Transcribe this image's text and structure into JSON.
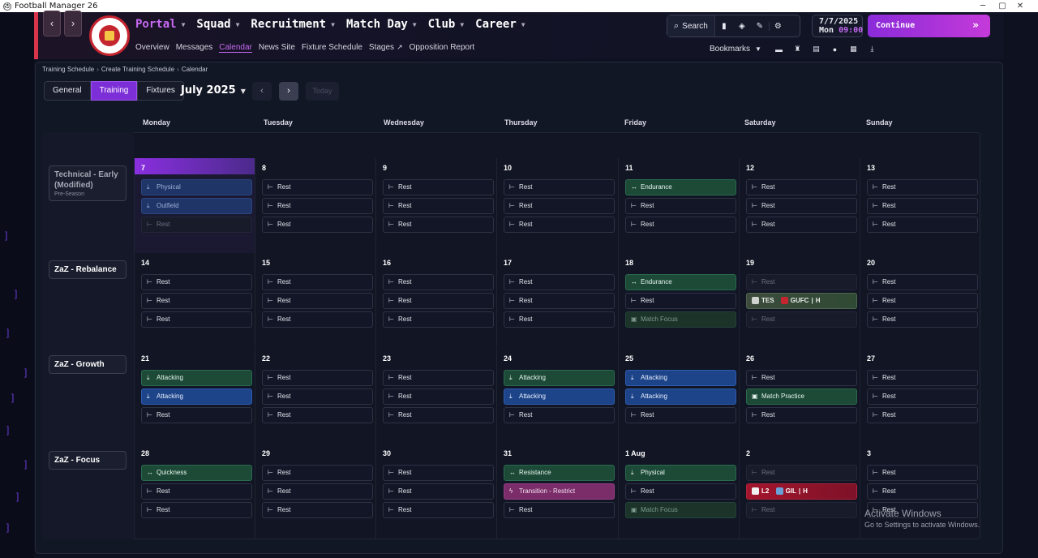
{
  "window": {
    "title": "Football Manager 26",
    "controls": [
      "─",
      "▢",
      "✕"
    ]
  },
  "header": {
    "main_nav": [
      {
        "label": "Portal",
        "active": true
      },
      {
        "label": "Squad",
        "active": false
      },
      {
        "label": "Recruitment",
        "active": false
      },
      {
        "label": "Match Day",
        "active": false
      },
      {
        "label": "Club",
        "active": false
      },
      {
        "label": "Career",
        "active": false
      }
    ],
    "sub_nav": [
      {
        "label": "Overview",
        "active": false
      },
      {
        "label": "Messages",
        "active": false
      },
      {
        "label": "Calendar",
        "active": true
      },
      {
        "label": "News Site",
        "active": false
      },
      {
        "label": "Fixture Schedule",
        "active": false
      },
      {
        "label": "Stages",
        "active": false,
        "external": true
      },
      {
        "label": "Opposition Report",
        "active": false
      }
    ],
    "search_label": "Search",
    "date": "7/7/2025",
    "day": "Mon",
    "time": "09:00",
    "continue_label": "Continue",
    "bookmarks_label": "Bookmarks",
    "accent": "#c86af3"
  },
  "breadcrumb": [
    "Training Schedule",
    "Create Training Schedule",
    "Calendar"
  ],
  "toolbar": {
    "tabs": [
      {
        "label": "General",
        "active": false
      },
      {
        "label": "Training",
        "active": true
      },
      {
        "label": "Fixtures",
        "active": false
      }
    ],
    "month": "July 2025",
    "today_label": "Today"
  },
  "days": [
    "Monday",
    "Tuesday",
    "Wednesday",
    "Thursday",
    "Friday",
    "Saturday",
    "Sunday"
  ],
  "weeks": [
    {
      "plan": {
        "name": "Technical - Early (Modified)",
        "sub": "Pre-Season",
        "dim": true
      },
      "cells": [
        {
          "num": "7",
          "today": true,
          "sessions": [
            {
              "label": "Physical",
              "style": "dimblue",
              "icon": "⤓"
            },
            {
              "label": "Outfield",
              "style": "dimblue",
              "icon": "⤓"
            },
            {
              "label": "Rest",
              "style": "dim",
              "icon": "⊢"
            }
          ]
        },
        {
          "num": "8",
          "sessions": [
            {
              "label": "Rest",
              "style": "rest",
              "icon": "⊢"
            },
            {
              "label": "Rest",
              "style": "rest",
              "icon": "⊢"
            },
            {
              "label": "Rest",
              "style": "rest",
              "icon": "⊢"
            }
          ]
        },
        {
          "num": "9",
          "sessions": [
            {
              "label": "Rest",
              "style": "rest",
              "icon": "⊢"
            },
            {
              "label": "Rest",
              "style": "rest",
              "icon": "⊢"
            },
            {
              "label": "Rest",
              "style": "rest",
              "icon": "⊢"
            }
          ]
        },
        {
          "num": "10",
          "sessions": [
            {
              "label": "Rest",
              "style": "rest",
              "icon": "⊢"
            },
            {
              "label": "Rest",
              "style": "rest",
              "icon": "⊢"
            },
            {
              "label": "Rest",
              "style": "rest",
              "icon": "⊢"
            }
          ]
        },
        {
          "num": "11",
          "sessions": [
            {
              "label": "Endurance",
              "style": "green",
              "icon": "↔"
            },
            {
              "label": "Rest",
              "style": "rest",
              "icon": "⊢"
            },
            {
              "label": "Rest",
              "style": "rest",
              "icon": "⊢"
            }
          ]
        },
        {
          "num": "12",
          "sessions": [
            {
              "label": "Rest",
              "style": "rest",
              "icon": "⊢"
            },
            {
              "label": "Rest",
              "style": "rest",
              "icon": "⊢"
            },
            {
              "label": "Rest",
              "style": "rest",
              "icon": "⊢"
            }
          ]
        },
        {
          "num": "13",
          "sessions": [
            {
              "label": "Rest",
              "style": "rest",
              "icon": "⊢"
            },
            {
              "label": "Rest",
              "style": "rest",
              "icon": "⊢"
            },
            {
              "label": "Rest",
              "style": "rest",
              "icon": "⊢"
            }
          ]
        }
      ]
    },
    {
      "plan": {
        "name": "ZaZ - Rebalance",
        "sub": "",
        "dim": false
      },
      "cells": [
        {
          "num": "14",
          "sessions": [
            {
              "label": "Rest",
              "style": "rest",
              "icon": "⊢"
            },
            {
              "label": "Rest",
              "style": "rest",
              "icon": "⊢"
            },
            {
              "label": "Rest",
              "style": "rest",
              "icon": "⊢"
            }
          ]
        },
        {
          "num": "15",
          "sessions": [
            {
              "label": "Rest",
              "style": "rest",
              "icon": "⊢"
            },
            {
              "label": "Rest",
              "style": "rest",
              "icon": "⊢"
            },
            {
              "label": "Rest",
              "style": "rest",
              "icon": "⊢"
            }
          ]
        },
        {
          "num": "16",
          "sessions": [
            {
              "label": "Rest",
              "style": "rest",
              "icon": "⊢"
            },
            {
              "label": "Rest",
              "style": "rest",
              "icon": "⊢"
            },
            {
              "label": "Rest",
              "style": "rest",
              "icon": "⊢"
            }
          ]
        },
        {
          "num": "17",
          "sessions": [
            {
              "label": "Rest",
              "style": "rest",
              "icon": "⊢"
            },
            {
              "label": "Rest",
              "style": "rest",
              "icon": "⊢"
            },
            {
              "label": "Rest",
              "style": "rest",
              "icon": "⊢"
            }
          ]
        },
        {
          "num": "18",
          "sessions": [
            {
              "label": "Endurance",
              "style": "green",
              "icon": "↔"
            },
            {
              "label": "Rest",
              "style": "rest",
              "icon": "⊢"
            },
            {
              "label": "Match Focus",
              "style": "dimgreen",
              "icon": "▣"
            }
          ]
        },
        {
          "num": "19",
          "sessions": [
            {
              "label": "Rest",
              "style": "dim",
              "icon": "⊢"
            },
            {
              "label": "",
              "style": "match",
              "icon": "",
              "home_team": "TES",
              "away_team": "GUFC",
              "venue": "H",
              "home_color": "#cfd3cf",
              "away_color": "#c4252f"
            },
            {
              "label": "Rest",
              "style": "dim",
              "icon": "⊢"
            }
          ]
        },
        {
          "num": "20",
          "sessions": [
            {
              "label": "Rest",
              "style": "rest",
              "icon": "⊢"
            },
            {
              "label": "Rest",
              "style": "rest",
              "icon": "⊢"
            },
            {
              "label": "Rest",
              "style": "rest",
              "icon": "⊢"
            }
          ]
        }
      ]
    },
    {
      "plan": {
        "name": "ZaZ - Growth",
        "sub": "",
        "dim": false
      },
      "cells": [
        {
          "num": "21",
          "sessions": [
            {
              "label": "Attacking",
              "style": "green",
              "icon": "⤓"
            },
            {
              "label": "Attacking",
              "style": "blue",
              "icon": "⤓"
            },
            {
              "label": "Rest",
              "style": "rest",
              "icon": "⊢"
            }
          ]
        },
        {
          "num": "22",
          "sessions": [
            {
              "label": "Rest",
              "style": "rest",
              "icon": "⊢"
            },
            {
              "label": "Rest",
              "style": "rest",
              "icon": "⊢"
            },
            {
              "label": "Rest",
              "style": "rest",
              "icon": "⊢"
            }
          ]
        },
        {
          "num": "23",
          "sessions": [
            {
              "label": "Rest",
              "style": "rest",
              "icon": "⊢"
            },
            {
              "label": "Rest",
              "style": "rest",
              "icon": "⊢"
            },
            {
              "label": "Rest",
              "style": "rest",
              "icon": "⊢"
            }
          ]
        },
        {
          "num": "24",
          "sessions": [
            {
              "label": "Attacking",
              "style": "green",
              "icon": "⤓"
            },
            {
              "label": "Attacking",
              "style": "blue",
              "icon": "⤓"
            },
            {
              "label": "Rest",
              "style": "rest",
              "icon": "⊢"
            }
          ]
        },
        {
          "num": "25",
          "sessions": [
            {
              "label": "Attacking",
              "style": "blue",
              "icon": "⤓"
            },
            {
              "label": "Attacking",
              "style": "blue",
              "icon": "⤓"
            },
            {
              "label": "Rest",
              "style": "rest",
              "icon": "⊢"
            }
          ]
        },
        {
          "num": "26",
          "sessions": [
            {
              "label": "Rest",
              "style": "rest",
              "icon": "⊢"
            },
            {
              "label": "Match Practice",
              "style": "green",
              "icon": "▣"
            },
            {
              "label": "Rest",
              "style": "rest",
              "icon": "⊢"
            }
          ]
        },
        {
          "num": "27",
          "sessions": [
            {
              "label": "Rest",
              "style": "rest",
              "icon": "⊢"
            },
            {
              "label": "Rest",
              "style": "rest",
              "icon": "⊢"
            },
            {
              "label": "Rest",
              "style": "rest",
              "icon": "⊢"
            }
          ]
        }
      ]
    },
    {
      "plan": {
        "name": "ZaZ - Focus",
        "sub": "",
        "dim": false
      },
      "cells": [
        {
          "num": "28",
          "sessions": [
            {
              "label": "Quickness",
              "style": "green",
              "icon": "↔"
            },
            {
              "label": "Rest",
              "style": "rest",
              "icon": "⊢"
            },
            {
              "label": "Rest",
              "style": "rest",
              "icon": "⊢"
            }
          ]
        },
        {
          "num": "29",
          "sessions": [
            {
              "label": "Rest",
              "style": "rest",
              "icon": "⊢"
            },
            {
              "label": "Rest",
              "style": "rest",
              "icon": "⊢"
            },
            {
              "label": "Rest",
              "style": "rest",
              "icon": "⊢"
            }
          ]
        },
        {
          "num": "30",
          "sessions": [
            {
              "label": "Rest",
              "style": "rest",
              "icon": "⊢"
            },
            {
              "label": "Rest",
              "style": "rest",
              "icon": "⊢"
            },
            {
              "label": "Rest",
              "style": "rest",
              "icon": "⊢"
            }
          ]
        },
        {
          "num": "31",
          "sessions": [
            {
              "label": "Resistance",
              "style": "green",
              "icon": "↔"
            },
            {
              "label": "Transition - Restrict",
              "style": "pink",
              "icon": "ϟ"
            },
            {
              "label": "Rest",
              "style": "rest",
              "icon": "⊢"
            }
          ]
        },
        {
          "num": "1 Aug",
          "sessions": [
            {
              "label": "Physical",
              "style": "green",
              "icon": "⤓"
            },
            {
              "label": "Rest",
              "style": "rest",
              "icon": "⊢"
            },
            {
              "label": "Match Focus",
              "style": "dimgreen",
              "icon": "▣"
            }
          ]
        },
        {
          "num": "2",
          "sessions": [
            {
              "label": "Rest",
              "style": "dim",
              "icon": "⊢"
            },
            {
              "label": "",
              "style": "matchred",
              "icon": "",
              "home_team": "L2",
              "away_team": "GIL",
              "venue": "H",
              "home_color": "#f0f0f0",
              "away_color": "#6aa0d8"
            },
            {
              "label": "Rest",
              "style": "dim",
              "icon": "⊢"
            }
          ]
        },
        {
          "num": "3",
          "sessions": [
            {
              "label": "Rest",
              "style": "rest",
              "icon": "⊢"
            },
            {
              "label": "Rest",
              "style": "rest",
              "icon": "⊢"
            },
            {
              "label": "Rest",
              "style": "rest",
              "icon": "⊢"
            }
          ]
        }
      ]
    }
  ],
  "watermark": {
    "line1": "Activate Windows",
    "line2": "Go to Settings to activate Windows."
  }
}
